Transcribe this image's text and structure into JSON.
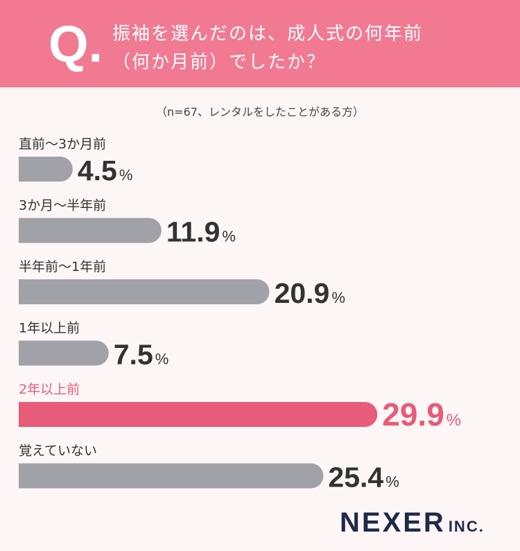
{
  "header": {
    "q_mark": "Q.",
    "question_line1": "振袖を選んだのは、成人式の何年前",
    "question_line2": "（何か月前）でしたか？"
  },
  "sample_note": "（n=67、レンタルをしたことがある方）",
  "brand": {
    "main": "NEXER",
    "sub": "INC."
  },
  "chart_data": {
    "type": "bar",
    "orientation": "horizontal",
    "title": "",
    "xlabel": "",
    "ylabel": "",
    "unit": "%",
    "categories": [
      "直前～3か月前",
      "3か月～半年前",
      "半年前～1年前",
      "1年以上前",
      "2年以上前",
      "覚えていない"
    ],
    "values": [
      4.5,
      11.9,
      20.9,
      7.5,
      29.9,
      25.4
    ],
    "highlight_index": 4,
    "colors": {
      "default": "#a1a2a7",
      "highlight": "#e75c79",
      "label": "#333333"
    },
    "grid": false,
    "legend": "none"
  }
}
